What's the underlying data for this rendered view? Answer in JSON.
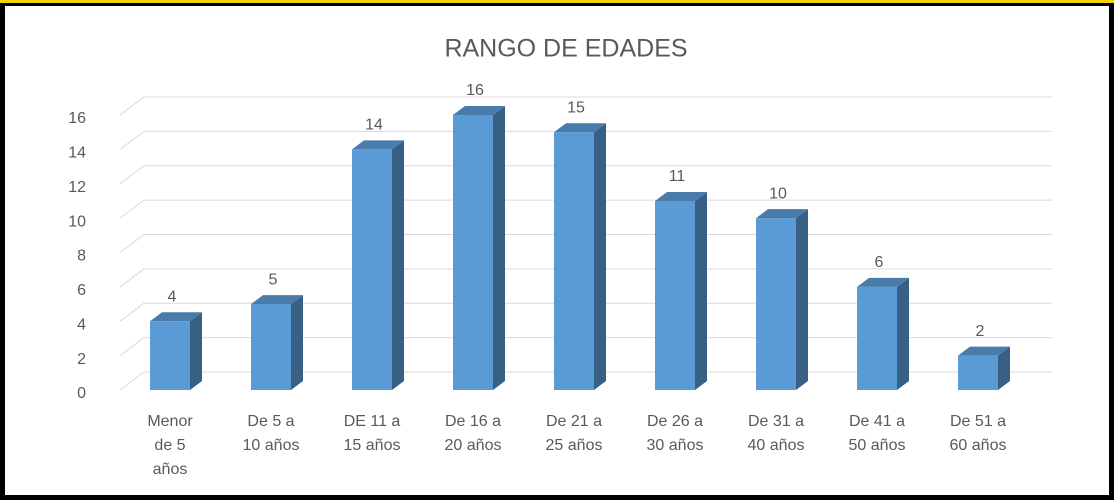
{
  "chart_data": {
    "type": "bar",
    "title": "RANGO DE EDADES",
    "categories": [
      "Menor de 5 años",
      "De 5 a 10 años",
      "DE 11 a 15 años",
      "De 16 a 20 años",
      "De 21 a 25 años",
      "De 26 a 30 años",
      "De 31 a 40 años",
      "De 41 a 50 años",
      "De 51 a 60 años"
    ],
    "values": [
      4,
      5,
      14,
      16,
      15,
      11,
      10,
      6,
      2
    ],
    "color": "#5b9bd5",
    "ylim": [
      0,
      16
    ],
    "yticks": [
      0,
      2,
      4,
      6,
      8,
      10,
      12,
      14,
      16
    ],
    "grid": true
  }
}
